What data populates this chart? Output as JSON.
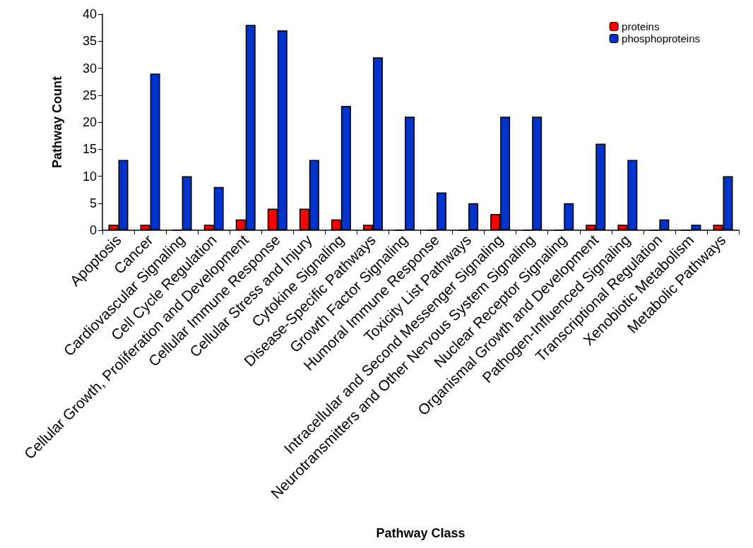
{
  "chart_data": {
    "type": "bar",
    "xlabel": "Pathway Class",
    "ylabel": "Pathway Count",
    "categories": [
      "Apoptosis",
      "Cancer",
      "Cardiovascular Signaling",
      "Cell Cycle Regulation",
      "Cellular Growth, Proliferation and Development",
      "Cellular Immune Response",
      "Cellular Stress and Injury",
      "Cytokine Signaling",
      "Disease-Specific Pathways",
      "Growth Factor Signaling",
      "Humoral Immune Response",
      "Toxicity List Pathways",
      "Intracellular and Second Messenger Signaling",
      "Neurotransmitters and Other Nervous System Signaling",
      "Nuclear Receptor Signaling",
      "Organismal Growth and Development",
      "Pathogen-Influenced Signaling",
      "Transcriptional Regulation",
      "Xenobiotic Metabolism",
      "Metabolic Pathways"
    ],
    "series": [
      {
        "name": "proteins",
        "color": "#ff0000",
        "values": [
          1,
          1,
          0,
          1,
          2,
          4,
          4,
          2,
          1,
          0,
          0,
          0,
          3,
          0,
          0,
          1,
          1,
          0,
          0,
          1
        ]
      },
      {
        "name": "phosphoproteins",
        "color": "#0033cc",
        "values": [
          13,
          29,
          10,
          8,
          38,
          37,
          13,
          23,
          32,
          21,
          7,
          5,
          21,
          21,
          5,
          16,
          13,
          2,
          1,
          10
        ]
      }
    ],
    "ylim": [
      0,
      40
    ],
    "yticks": [
      0,
      5,
      10,
      15,
      20,
      25,
      30,
      35,
      40
    ],
    "grid": false,
    "legend": "top right"
  }
}
